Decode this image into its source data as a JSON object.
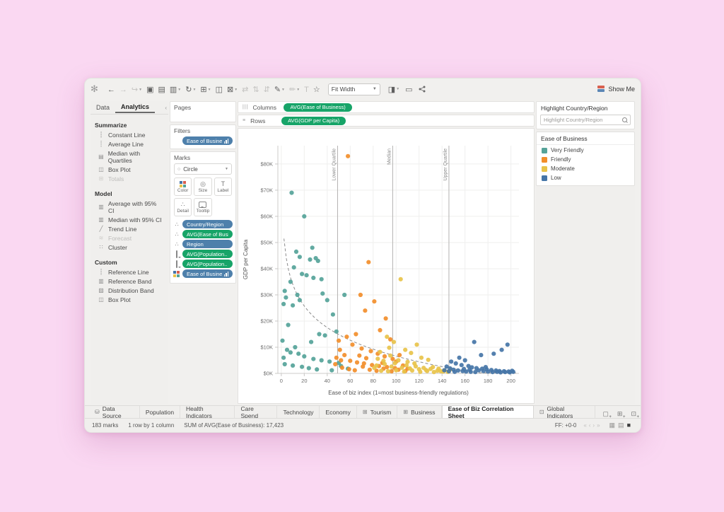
{
  "toolbar": {
    "fit_selector": "Fit Width",
    "show_me_label": "Show Me",
    "icons": [
      {
        "name": "undo-icon",
        "glyph": "←"
      },
      {
        "name": "redo-icon",
        "glyph": "→",
        "dim": true
      },
      {
        "name": "replay-icon",
        "glyph": "↪",
        "dim": true,
        "caret": true
      },
      {
        "name": "save-icon",
        "glyph": "▣"
      },
      {
        "name": "new-datasource-icon",
        "glyph": "▤"
      },
      {
        "name": "pause-updates-icon",
        "glyph": "▥",
        "caret": true
      },
      {
        "name": "run-update-icon",
        "glyph": "↻",
        "caret": true
      },
      {
        "name": "new-worksheet-icon",
        "glyph": "⊞",
        "caret": true
      },
      {
        "name": "duplicate-sheet-icon",
        "glyph": "◫"
      },
      {
        "name": "clear-sheet-icon",
        "glyph": "⊠",
        "caret": true
      },
      {
        "name": "swap-axes-icon",
        "glyph": "⇄",
        "dim": true
      },
      {
        "name": "sort-ascending-icon",
        "glyph": "⇅",
        "dim": true
      },
      {
        "name": "sort-descending-icon",
        "glyph": "⇵",
        "dim": true
      },
      {
        "name": "highlight-icon",
        "glyph": "✎",
        "caret": true
      },
      {
        "name": "format-icon",
        "glyph": "✏",
        "dim": true,
        "caret": true
      },
      {
        "name": "text-label-icon",
        "glyph": "T",
        "dim": true
      },
      {
        "name": "pin-icon",
        "glyph": "☆"
      }
    ]
  },
  "left_panel": {
    "tabs": [
      "Data",
      "Analytics"
    ],
    "active_tab": "Analytics",
    "collapse_glyph": "‹",
    "sections": [
      {
        "title": "Summarize",
        "items": [
          {
            "label": "Constant Line",
            "glyph": "┆"
          },
          {
            "label": "Average Line",
            "glyph": "┊"
          },
          {
            "label": "Median with Quartiles",
            "glyph": "▤"
          },
          {
            "label": "Box Plot",
            "glyph": "◫"
          },
          {
            "label": "Totals",
            "glyph": "⊞",
            "disabled": true
          }
        ]
      },
      {
        "title": "Model",
        "items": [
          {
            "label": "Average with 95% CI",
            "glyph": "▥"
          },
          {
            "label": "Median with 95% CI",
            "glyph": "▥"
          },
          {
            "label": "Trend Line",
            "glyph": "╱"
          },
          {
            "label": "Forecast",
            "glyph": "≋",
            "disabled": true
          },
          {
            "label": "Cluster",
            "glyph": "∷"
          }
        ]
      },
      {
        "title": "Custom",
        "items": [
          {
            "label": "Reference Line",
            "glyph": "┆"
          },
          {
            "label": "Reference Band",
            "glyph": "▥"
          },
          {
            "label": "Distribution Band",
            "glyph": "▨"
          },
          {
            "label": "Box Plot",
            "glyph": "◫"
          }
        ]
      }
    ]
  },
  "mid_panel": {
    "pages_label": "Pages",
    "filters_label": "Filters",
    "filter_pills": [
      {
        "label": "Ease of Business (cl..",
        "color": "blue",
        "trail": "bars"
      }
    ],
    "marks_label": "Marks",
    "mark_type_selector": "Circle",
    "mark_buttons": [
      {
        "label": "Color",
        "icon": "color-icon"
      },
      {
        "label": "Size",
        "icon": "size-icon"
      },
      {
        "label": "Label",
        "icon": "label-icon"
      },
      {
        "label": "Detail",
        "icon": "detail-icon"
      },
      {
        "label": "Tooltip",
        "icon": "tooltip-icon"
      }
    ],
    "mark_pills": [
      {
        "label": "Country/Region",
        "color": "blue",
        "lead": "detail"
      },
      {
        "label": "AVG(Ease of Busi..",
        "color": "green",
        "lead": "detail"
      },
      {
        "label": "Region",
        "color": "blue",
        "lead": "detail"
      },
      {
        "label": "AVG(Population..",
        "color": "green",
        "lead": "tooltip"
      },
      {
        "label": "AVG(Population..",
        "color": "green",
        "lead": "tooltip"
      },
      {
        "label": "Ease of Busine..",
        "color": "blue",
        "lead": "color",
        "trail": "bars"
      }
    ]
  },
  "shelves": {
    "columns_label": "Columns",
    "columns_pills": [
      "AVG(Ease of Business)"
    ],
    "rows_label": "Rows",
    "rows_pills": [
      "AVG(GDP per Capita)"
    ]
  },
  "chart_data": {
    "type": "scatter",
    "xlabel": "Ease of biz index (1=most business-friendly regulations)",
    "ylabel": "GDP per Capita",
    "xlim": [
      -3,
      207
    ],
    "ylim": [
      0,
      87
    ],
    "x_ticks": [
      0,
      20,
      40,
      60,
      80,
      100,
      120,
      140,
      160,
      180,
      200
    ],
    "y_ticks": [
      0,
      10,
      20,
      30,
      40,
      50,
      60,
      70,
      80
    ],
    "y_tick_prefix": "$",
    "y_tick_suffix": "K",
    "grid": true,
    "reference_lines": [
      {
        "value": 49,
        "label": "Lower Quartile"
      },
      {
        "value": 97,
        "label": "Median"
      },
      {
        "value": 146,
        "label": "Upper Quartile"
      }
    ],
    "trend_line": {
      "style": "dashed",
      "model": "y = a - b*ln(x)",
      "a": 61.4,
      "b": 11.9,
      "x_start": 2.3,
      "x_end": 205
    },
    "series": [
      {
        "name": "Very Friendly",
        "color": "#55a399",
        "points": [
          [
            9,
            69
          ],
          [
            20,
            60
          ],
          [
            27,
            48
          ],
          [
            13,
            46.5
          ],
          [
            16,
            44.5
          ],
          [
            25,
            43.5
          ],
          [
            11,
            40.5
          ],
          [
            30,
            44
          ],
          [
            32,
            43
          ],
          [
            18,
            38
          ],
          [
            22,
            37.5
          ],
          [
            28,
            36.5
          ],
          [
            35,
            36
          ],
          [
            8,
            35
          ],
          [
            3,
            31.5
          ],
          [
            14,
            30
          ],
          [
            4,
            29
          ],
          [
            16,
            28
          ],
          [
            36,
            30.5
          ],
          [
            40,
            28
          ],
          [
            2,
            26.5
          ],
          [
            10,
            26
          ],
          [
            45,
            22.5
          ],
          [
            55,
            30
          ],
          [
            6,
            18.5
          ],
          [
            33,
            15
          ],
          [
            38,
            14.5
          ],
          [
            48,
            16
          ],
          [
            26,
            12
          ],
          [
            12,
            10
          ],
          [
            5,
            9
          ],
          [
            8,
            8
          ],
          [
            15,
            7.5
          ],
          [
            20,
            6.5
          ],
          [
            2,
            6
          ],
          [
            28,
            5.5
          ],
          [
            35,
            5
          ],
          [
            42,
            4.5
          ],
          [
            50,
            4
          ],
          [
            3,
            3.5
          ],
          [
            10,
            3
          ],
          [
            18,
            2.5
          ],
          [
            24,
            2
          ],
          [
            31,
            1.5
          ],
          [
            44,
            1.2
          ],
          [
            52,
            2.8
          ],
          [
            58,
            1.8
          ],
          [
            1,
            12.5
          ]
        ]
      },
      {
        "name": "Friendly",
        "color": "#f28e2b",
        "points": [
          [
            58,
            83
          ],
          [
            76,
            42.5
          ],
          [
            69,
            30
          ],
          [
            81,
            27.5
          ],
          [
            91,
            21
          ],
          [
            73,
            24
          ],
          [
            86,
            16.5
          ],
          [
            65,
            15
          ],
          [
            57,
            14
          ],
          [
            50,
            12.5
          ],
          [
            62,
            11
          ],
          [
            95,
            13
          ],
          [
            70,
            9.5
          ],
          [
            78,
            8.5
          ],
          [
            84,
            7.5
          ],
          [
            90,
            6.5
          ],
          [
            97,
            5.5
          ],
          [
            103,
            7
          ],
          [
            55,
            7
          ],
          [
            48,
            6
          ],
          [
            52,
            5
          ],
          [
            60,
            4.8
          ],
          [
            66,
            4.2
          ],
          [
            72,
            3.8
          ],
          [
            79,
            3.2
          ],
          [
            85,
            2.8
          ],
          [
            92,
            2.4
          ],
          [
            99,
            2
          ],
          [
            106,
            3
          ],
          [
            110,
            1.8
          ],
          [
            47,
            3.5
          ],
          [
            53,
            2.2
          ],
          [
            59,
            1.6
          ],
          [
            64,
            1.2
          ],
          [
            71,
            2.6
          ],
          [
            77,
            1.4
          ],
          [
            83,
            1
          ],
          [
            89,
            1.8
          ],
          [
            96,
            0.8
          ],
          [
            102,
            1.4
          ],
          [
            108,
            0.9
          ],
          [
            51,
            9
          ],
          [
            68,
            6.8
          ],
          [
            74,
            5.8
          ],
          [
            88,
            4
          ],
          [
            100,
            4.5
          ]
        ]
      },
      {
        "name": "Moderate",
        "color": "#e8c34a",
        "points": [
          [
            104,
            36
          ],
          [
            92,
            14
          ],
          [
            98,
            12
          ],
          [
            118,
            11
          ],
          [
            108,
            9
          ],
          [
            113,
            7.8
          ],
          [
            86,
            8.2
          ],
          [
            95,
            6.8
          ],
          [
            122,
            6
          ],
          [
            128,
            5.2
          ],
          [
            102,
            5
          ],
          [
            110,
            4.4
          ],
          [
            116,
            3.8
          ],
          [
            90,
            3.6
          ],
          [
            83,
            3
          ],
          [
            96,
            2.6
          ],
          [
            105,
            2.2
          ],
          [
            112,
            1.9
          ],
          [
            120,
            1.6
          ],
          [
            126,
            1.3
          ],
          [
            132,
            2.4
          ],
          [
            137,
            1.8
          ],
          [
            142,
            1.2
          ],
          [
            87,
            1
          ],
          [
            93,
            0.8
          ],
          [
            100,
            1.2
          ],
          [
            107,
            0.7
          ],
          [
            114,
            1.1
          ],
          [
            121,
            0.6
          ],
          [
            127,
            0.9
          ],
          [
            133,
            0.5
          ],
          [
            139,
            0.8
          ],
          [
            145,
            0.6
          ],
          [
            84,
            5.6
          ],
          [
            89,
            4.8
          ],
          [
            99,
            3.9
          ],
          [
            109,
            3.1
          ],
          [
            117,
            2.7
          ],
          [
            124,
            2.1
          ],
          [
            130,
            1.7
          ],
          [
            136,
            1
          ],
          [
            141,
            0.7
          ],
          [
            147,
            1.5
          ],
          [
            94,
            9.8
          ],
          [
            81,
            2.1
          ]
        ]
      },
      {
        "name": "Low",
        "color": "#4575a7",
        "points": [
          [
            168,
            12
          ],
          [
            192,
            9
          ],
          [
            185,
            7.5
          ],
          [
            174,
            7
          ],
          [
            197,
            11
          ],
          [
            155,
            6
          ],
          [
            160,
            5
          ],
          [
            148,
            4.5
          ],
          [
            152,
            3.8
          ],
          [
            157,
            3.2
          ],
          [
            163,
            2.8
          ],
          [
            166,
            2.3
          ],
          [
            170,
            2
          ],
          [
            175,
            1.8
          ],
          [
            179,
            1.5
          ],
          [
            183,
            1.3
          ],
          [
            187,
            1.1
          ],
          [
            190,
            0.9
          ],
          [
            194,
            0.8
          ],
          [
            198,
            0.7
          ],
          [
            201,
            1
          ],
          [
            144,
            2.6
          ],
          [
            147,
            1.9
          ],
          [
            150,
            1.4
          ],
          [
            154,
            1.1
          ],
          [
            158,
            0.9
          ],
          [
            161,
            0.7
          ],
          [
            165,
            0.6
          ],
          [
            169,
            0.5
          ],
          [
            172,
            1.2
          ],
          [
            176,
            0.9
          ],
          [
            180,
            0.7
          ],
          [
            184,
            0.5
          ],
          [
            188,
            0.6
          ],
          [
            191,
            0.4
          ],
          [
            195,
            0.5
          ],
          [
            199,
            0.4
          ],
          [
            142,
            1.2
          ],
          [
            146,
            0.8
          ],
          [
            151,
            0.6
          ],
          [
            159,
            1.7
          ],
          [
            164,
            1.4
          ],
          [
            178,
            2.4
          ],
          [
            202,
            0.6
          ]
        ]
      }
    ]
  },
  "right_panel": {
    "highlight_title": "Highlight Country/Region",
    "highlight_placeholder": "Highlight Country/Region",
    "legend_title": "Ease of Business",
    "legend_items": [
      {
        "label": "Very Friendly",
        "color": "#55a399"
      },
      {
        "label": "Friendly",
        "color": "#f28e2b"
      },
      {
        "label": "Moderate",
        "color": "#e8c34a"
      },
      {
        "label": "Low",
        "color": "#4575a7"
      }
    ]
  },
  "bottom_tabs": {
    "tabs": [
      {
        "label": "Data Source",
        "icon": "datasource-icon",
        "glyph": "⛁"
      },
      {
        "label": "Population"
      },
      {
        "label": "Health Indicators"
      },
      {
        "label": "Care Spend"
      },
      {
        "label": "Technology"
      },
      {
        "label": "Economy"
      },
      {
        "label": "Tourism",
        "icon": "dashboard-icon",
        "glyph": "⊞"
      },
      {
        "label": "Business",
        "icon": "dashboard-icon",
        "glyph": "⊞"
      },
      {
        "label": "Ease of Biz Correlation Sheet",
        "active": true
      },
      {
        "label": "Global Indicators",
        "icon": "story-icon",
        "glyph": "⊡"
      }
    ],
    "new_buttons": [
      {
        "name": "new-worksheet-button",
        "glyph": "▢"
      },
      {
        "name": "new-dashboard-button",
        "glyph": "⊞"
      },
      {
        "name": "new-story-button",
        "glyph": "⊡"
      }
    ]
  },
  "status_bar": {
    "marks": "183 marks",
    "size": "1 row by 1 column",
    "aggregate": "SUM of AVG(Ease of Business): 17,423",
    "right_text": "FF: +0-0"
  }
}
